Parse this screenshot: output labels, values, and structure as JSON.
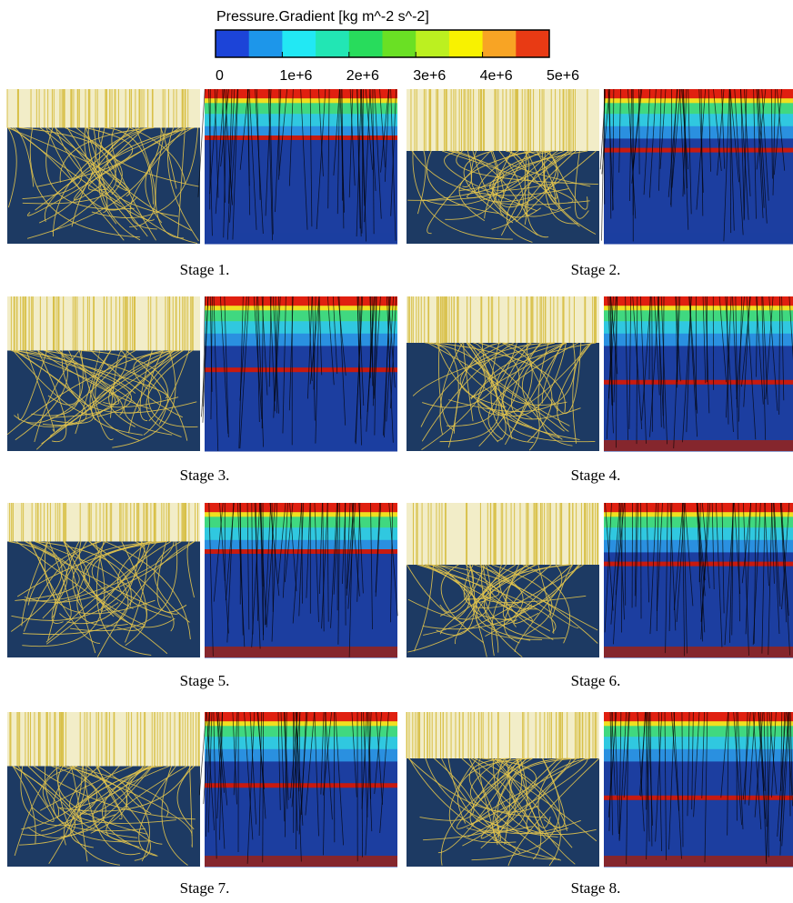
{
  "colorbar": {
    "title": "Pressure.Gradient  [kg m^-2 s^-2]",
    "lim": [
      0,
      5000000
    ],
    "ticks": [
      0,
      {
        "value": 1000000,
        "label": "1e+6"
      },
      {
        "value": 2000000,
        "label": "2e+6"
      },
      {
        "value": 3000000,
        "label": "3e+6"
      },
      {
        "value": 4000000,
        "label": "4e+6"
      },
      {
        "value": 5000000,
        "label": "5e+6"
      }
    ],
    "colors": [
      "#1c44d8",
      "#1d96ea",
      "#22e8f4",
      "#22e6b4",
      "#28dc5c",
      "#6ae024",
      "#bcf020",
      "#f8f200",
      "#f8a424",
      "#e83a14"
    ]
  },
  "panels": [
    {
      "caption": "Stage 1."
    },
    {
      "caption": "Stage 2."
    },
    {
      "caption": "Stage 3."
    },
    {
      "caption": "Stage 4."
    },
    {
      "caption": "Stage 5."
    },
    {
      "caption": "Stage 6."
    },
    {
      "caption": "Stage 7."
    },
    {
      "caption": "Stage 8."
    }
  ]
}
